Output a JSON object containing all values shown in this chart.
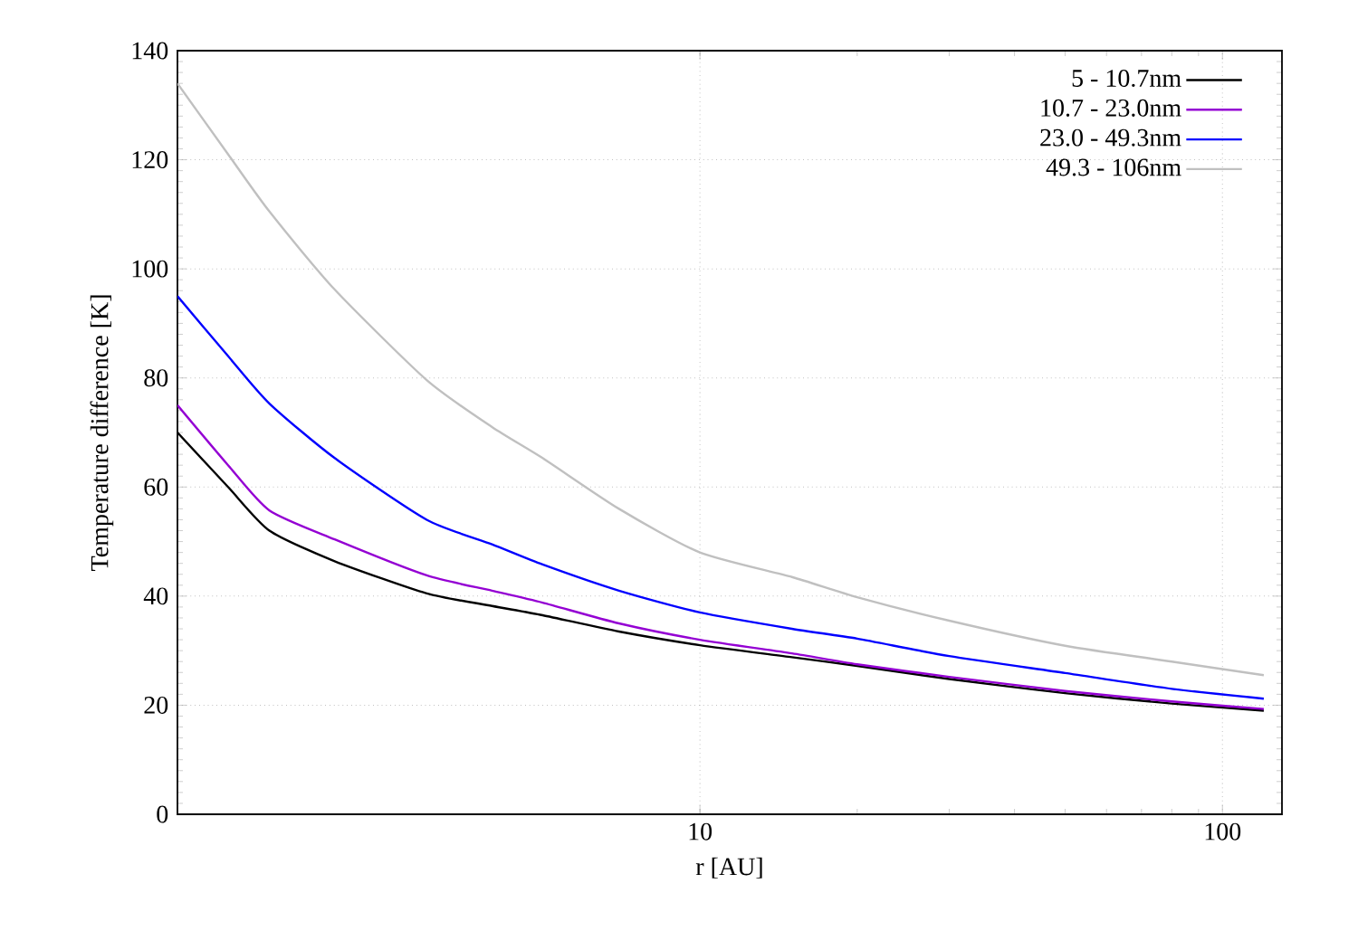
{
  "chart_data": {
    "type": "line",
    "xlabel": "r [AU]",
    "ylabel": "Temperature difference [K]",
    "log": "x",
    "xlim": [
      1,
      130
    ],
    "xticks": [
      10,
      100
    ],
    "ylim": [
      0,
      140
    ],
    "yticks": [
      0,
      20,
      40,
      60,
      80,
      100,
      120,
      140
    ],
    "grid": true,
    "legend": "top right",
    "line_style": "solid",
    "marker": "none",
    "x": [
      1,
      1.25,
      1.5,
      2,
      3,
      4,
      5,
      7,
      10,
      15,
      20,
      30,
      50,
      80,
      120
    ],
    "series": [
      {
        "name": "5 - 10.7nm",
        "color": "#000000",
        "values": [
          70,
          60,
          52,
          46.4,
          40.5,
          38.2,
          36.5,
          33.5,
          31,
          28.8,
          27.2,
          24.8,
          22.2,
          20.3,
          19
        ]
      },
      {
        "name": "10.7 - 23.0nm",
        "color": "#9400d3",
        "values": [
          75,
          64,
          55.7,
          50.4,
          43.8,
          41,
          38.8,
          35,
          32,
          29.5,
          27.5,
          25.2,
          22.6,
          20.7,
          19.3
        ]
      },
      {
        "name": "23.0 - 49.3nm",
        "color": "#0000ff",
        "values": [
          95,
          84,
          75.3,
          65.3,
          54,
          49.5,
          45.8,
          41,
          37,
          34,
          32.2,
          29,
          25.9,
          23,
          21.2
        ]
      },
      {
        "name": "49.3 - 106nm",
        "color": "#c0c0c0",
        "values": [
          134,
          121,
          110.5,
          96.2,
          79.6,
          71,
          65.3,
          56,
          48,
          43.5,
          39.8,
          35.5,
          30.9,
          28,
          25.5
        ]
      }
    ]
  }
}
